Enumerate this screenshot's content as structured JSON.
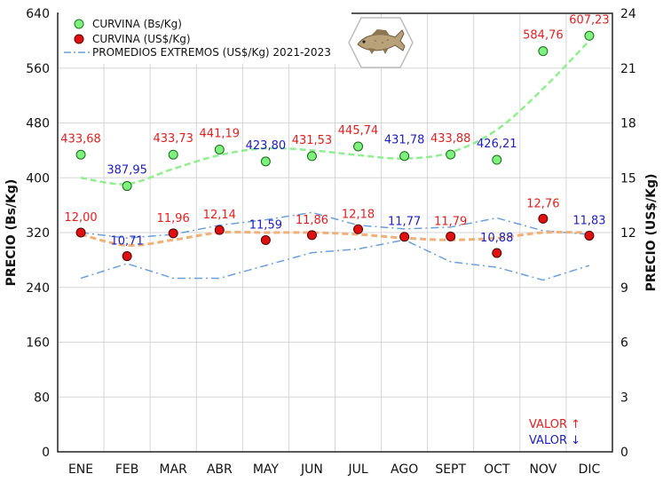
{
  "chart_data": {
    "type": "scatter",
    "categories": [
      "ENE",
      "FEB",
      "MAR",
      "ABR",
      "MAY",
      "JUN",
      "JUL",
      "AGO",
      "SEPT",
      "OCT",
      "NOV",
      "DIC"
    ],
    "y_left": {
      "label": "PRECIO (Bs/Kg)",
      "lim": [
        0,
        640
      ],
      "ticks": [
        0,
        80,
        160,
        240,
        320,
        400,
        480,
        560,
        640
      ]
    },
    "y_right": {
      "label": "PRECIO (US$/Kg)",
      "lim": [
        0,
        24
      ],
      "ticks": [
        0,
        3,
        6,
        9,
        12,
        15,
        18,
        21,
        24
      ]
    },
    "grid": true,
    "legend_position": "top-left",
    "series": [
      {
        "name": "CURVINA (Bs/Kg)",
        "axis": "left",
        "color": "#22cc22",
        "values": [
          433.68,
          387.95,
          433.73,
          441.19,
          423.8,
          431.53,
          445.74,
          431.78,
          433.88,
          426.21,
          584.76,
          607.23
        ],
        "labels": [
          "433,68",
          "387,95",
          "433,73",
          "441,19",
          "423,80",
          "431,53",
          "445,74",
          "431,78",
          "433,88",
          "426,21",
          "584,76",
          "607,23"
        ],
        "label_colors": [
          "#e02020",
          "#2020c0",
          "#e02020",
          "#e02020",
          "#2020c0",
          "#e02020",
          "#e02020",
          "#2020c0",
          "#e02020",
          "#2020c0",
          "#e02020",
          "#e02020"
        ]
      },
      {
        "name": "CURVINA (US$/Kg)",
        "axis": "right",
        "color": "#dd1111",
        "values": [
          12.0,
          10.71,
          11.96,
          12.14,
          11.59,
          11.86,
          12.18,
          11.77,
          11.79,
          10.88,
          12.76,
          11.83
        ],
        "labels": [
          "12,00",
          "10,71",
          "11,96",
          "12,14",
          "11,59",
          "11,86",
          "12,18",
          "11,77",
          "11,79",
          "10,88",
          "12,76",
          "11,83"
        ],
        "label_colors": [
          "#e02020",
          "#2020c0",
          "#e02020",
          "#e02020",
          "#2020c0",
          "#e02020",
          "#e02020",
          "#2020c0",
          "#e02020",
          "#2020c0",
          "#e02020",
          "#2020c0"
        ]
      }
    ],
    "extremes": {
      "name": "PROMEDIOS EXTREMOS (US$/Kg) 2021-2023",
      "color": "#6e9fd8",
      "upper": [
        12.0,
        11.7,
        11.9,
        12.4,
        12.7,
        13.1,
        12.4,
        12.2,
        12.3,
        12.8,
        12.1,
        11.9
      ],
      "lower": [
        9.5,
        10.3,
        9.5,
        9.5,
        10.2,
        10.9,
        11.1,
        11.6,
        10.4,
        10.1,
        9.4,
        10.2
      ]
    },
    "trend_bs": [
      400,
      391,
      413,
      433,
      443,
      440,
      433,
      428,
      437,
      470,
      530,
      600
    ],
    "trend_usd": [
      11.9,
      11.3,
      11.6,
      12.0,
      12.0,
      12.0,
      11.9,
      11.7,
      11.6,
      11.7,
      12.0,
      12.0
    ],
    "legend_note": {
      "up": "VALOR ↑",
      "down": "VALOR ↓",
      "up_color": "#e02020",
      "down_color": "#2020c0"
    }
  }
}
